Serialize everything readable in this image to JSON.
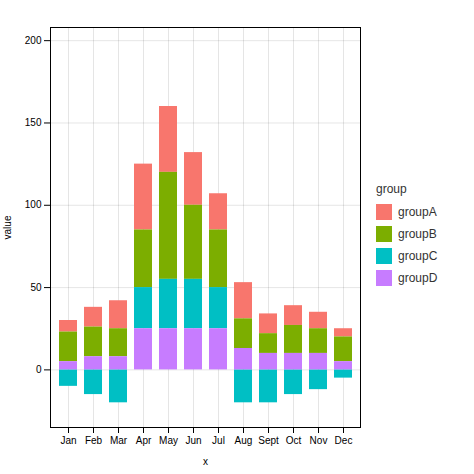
{
  "chart_data": {
    "type": "bar",
    "stacked": true,
    "xlabel": "x",
    "ylabel": "value",
    "legend_title": "group",
    "categories": [
      "Jan",
      "Feb",
      "Mar",
      "Apr",
      "May",
      "Jun",
      "Jul",
      "Aug",
      "Sept",
      "Oct",
      "Nov",
      "Dec"
    ],
    "series": [
      {
        "name": "groupA",
        "color": "#F8766D",
        "values": [
          7,
          12,
          17,
          40,
          40,
          32,
          22,
          22,
          12,
          12,
          10,
          5
        ]
      },
      {
        "name": "groupB",
        "color": "#7CAE00",
        "values": [
          18,
          18,
          17,
          35,
          65,
          45,
          35,
          18,
          12,
          17,
          15,
          15
        ]
      },
      {
        "name": "groupC",
        "color": "#00BFC4",
        "values": [
          -10,
          -15,
          -20,
          25,
          30,
          30,
          25,
          -20,
          -20,
          -15,
          -12,
          -5
        ]
      },
      {
        "name": "groupD",
        "color": "#C77CFF",
        "values": [
          5,
          8,
          8,
          25,
          25,
          25,
          25,
          13,
          10,
          10,
          10,
          5
        ]
      }
    ],
    "ylim": [
      -35,
      208
    ],
    "yticks": [
      0,
      50,
      100,
      150,
      200
    ],
    "grid": true,
    "legend": "right"
  }
}
